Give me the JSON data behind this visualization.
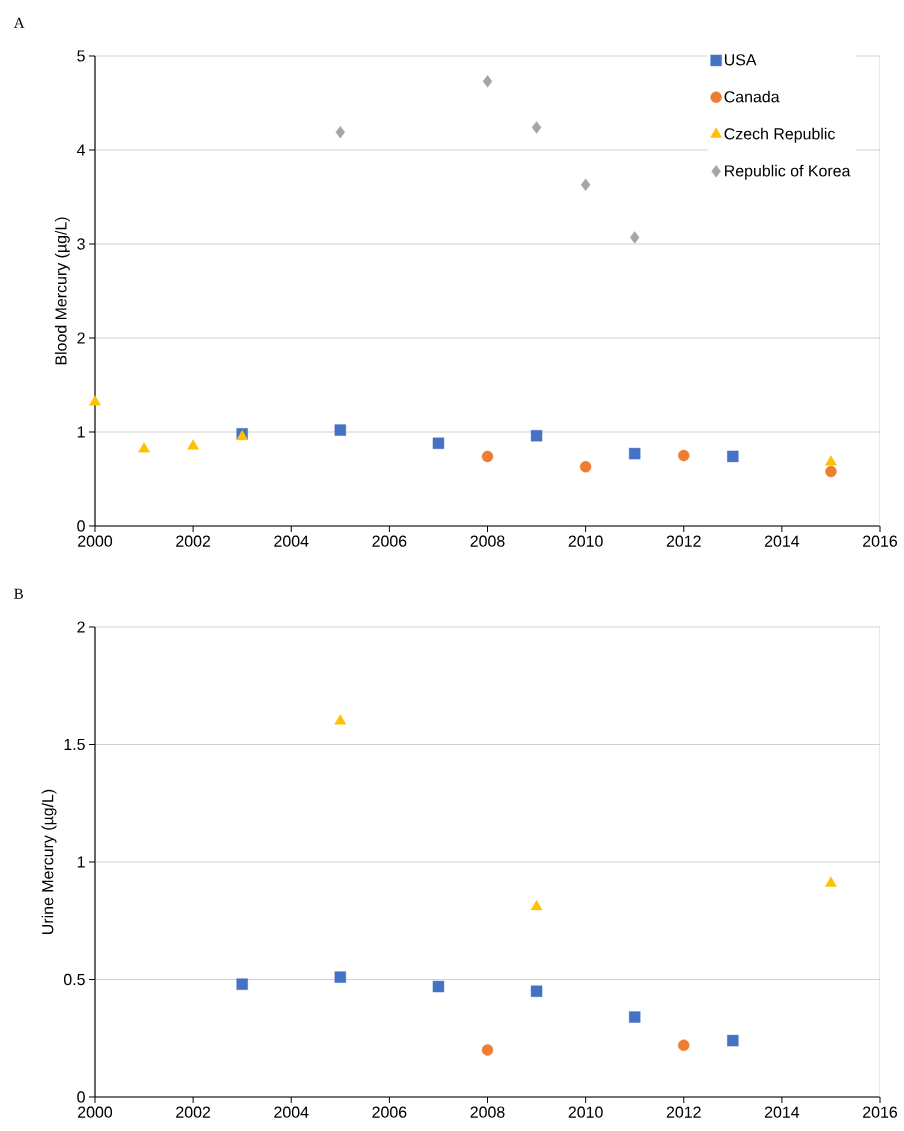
{
  "chart_data": [
    {
      "type": "scatter",
      "title": "A",
      "ylabel": "Blood Mercury (µg/L)",
      "xlim": [
        2000,
        2016
      ],
      "xticks": [
        2000,
        2002,
        2004,
        2006,
        2008,
        2010,
        2012,
        2014,
        2016
      ],
      "ylim": [
        0,
        5
      ],
      "yticks": [
        0,
        1,
        2,
        3,
        4,
        5
      ],
      "grid": "y",
      "legend": "top right",
      "series": [
        {
          "name": "USA",
          "color": "#4472c4",
          "marker": "square",
          "x": [
            2003,
            2005,
            2007,
            2009,
            2011,
            2013
          ],
          "values": [
            0.98,
            1.02,
            0.88,
            0.96,
            0.77,
            0.74
          ]
        },
        {
          "name": "Canada",
          "color": "#ed7d31",
          "marker": "circle",
          "x": [
            2008,
            2010,
            2012,
            2015
          ],
          "values": [
            0.74,
            0.63,
            0.75,
            0.58
          ]
        },
        {
          "name": "Czech Republic",
          "color": "#ffc000",
          "marker": "triangle",
          "x": [
            2000,
            2001,
            2002,
            2003,
            2015
          ],
          "values": [
            1.32,
            0.82,
            0.85,
            0.95,
            0.68
          ]
        },
        {
          "name": "Republic of Korea",
          "color": "#a5a5a5",
          "marker": "diamond",
          "x": [
            2005,
            2008,
            2009,
            2010,
            2011
          ],
          "values": [
            4.19,
            4.73,
            4.24,
            3.63,
            3.07
          ]
        }
      ]
    },
    {
      "type": "scatter",
      "title": "B",
      "ylabel": "Urine Mercury (µg/L)",
      "xlim": [
        2000,
        2016
      ],
      "xticks": [
        2000,
        2002,
        2004,
        2006,
        2008,
        2010,
        2012,
        2014,
        2016
      ],
      "ylim": [
        0,
        2
      ],
      "yticks": [
        0,
        0.5,
        1,
        1.5,
        2
      ],
      "grid": "y",
      "series": [
        {
          "color": "#4472c4",
          "marker": "square",
          "x": [
            2003,
            2005,
            2007,
            2009,
            2011,
            2013
          ],
          "values": [
            0.48,
            0.51,
            0.47,
            0.45,
            0.34,
            0.24
          ]
        },
        {
          "color": "#ed7d31",
          "marker": "circle",
          "x": [
            2008,
            2012
          ],
          "values": [
            0.2,
            0.22
          ]
        },
        {
          "color": "#ffc000",
          "marker": "triangle",
          "x": [
            2005,
            2009,
            2015
          ],
          "values": [
            1.6,
            0.81,
            0.91
          ]
        }
      ]
    }
  ]
}
